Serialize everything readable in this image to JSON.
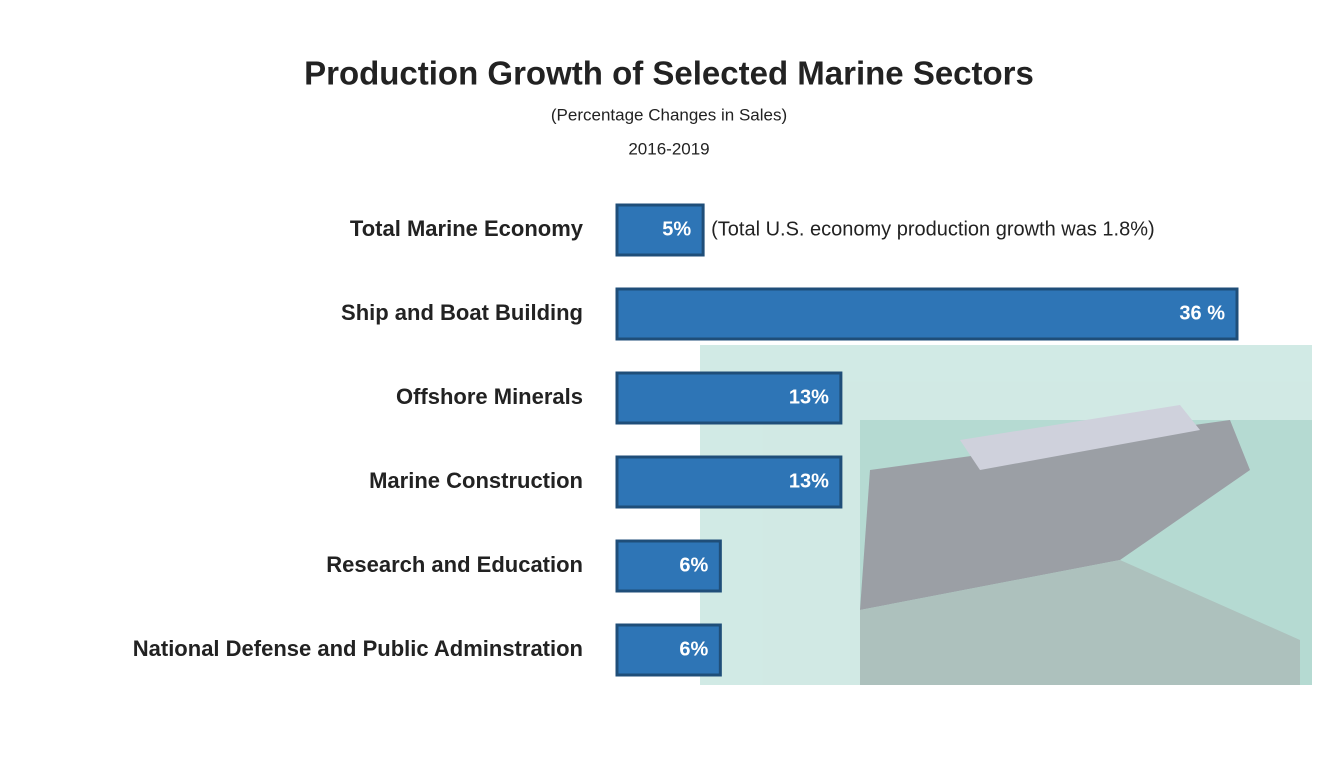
{
  "chart_data": {
    "type": "bar",
    "orientation": "horizontal",
    "title": "Production Growth of Selected Marine Sectors",
    "subtitle": "(Percentage Changes in Sales)",
    "period": "2016-2019",
    "annotation": "(Total U.S. economy production growth was 1.8%)",
    "categories": [
      "Total Marine Economy",
      "Ship and Boat Building",
      "Offshore Minerals",
      "Marine Construction",
      "Research and Education",
      "National Defense and Public Adminstration"
    ],
    "values": [
      5,
      36,
      13,
      13,
      6,
      6
    ],
    "value_labels": [
      "5%",
      "36 %",
      "13%",
      "13%",
      "6%",
      "6%"
    ],
    "color": "#2e75b6"
  }
}
